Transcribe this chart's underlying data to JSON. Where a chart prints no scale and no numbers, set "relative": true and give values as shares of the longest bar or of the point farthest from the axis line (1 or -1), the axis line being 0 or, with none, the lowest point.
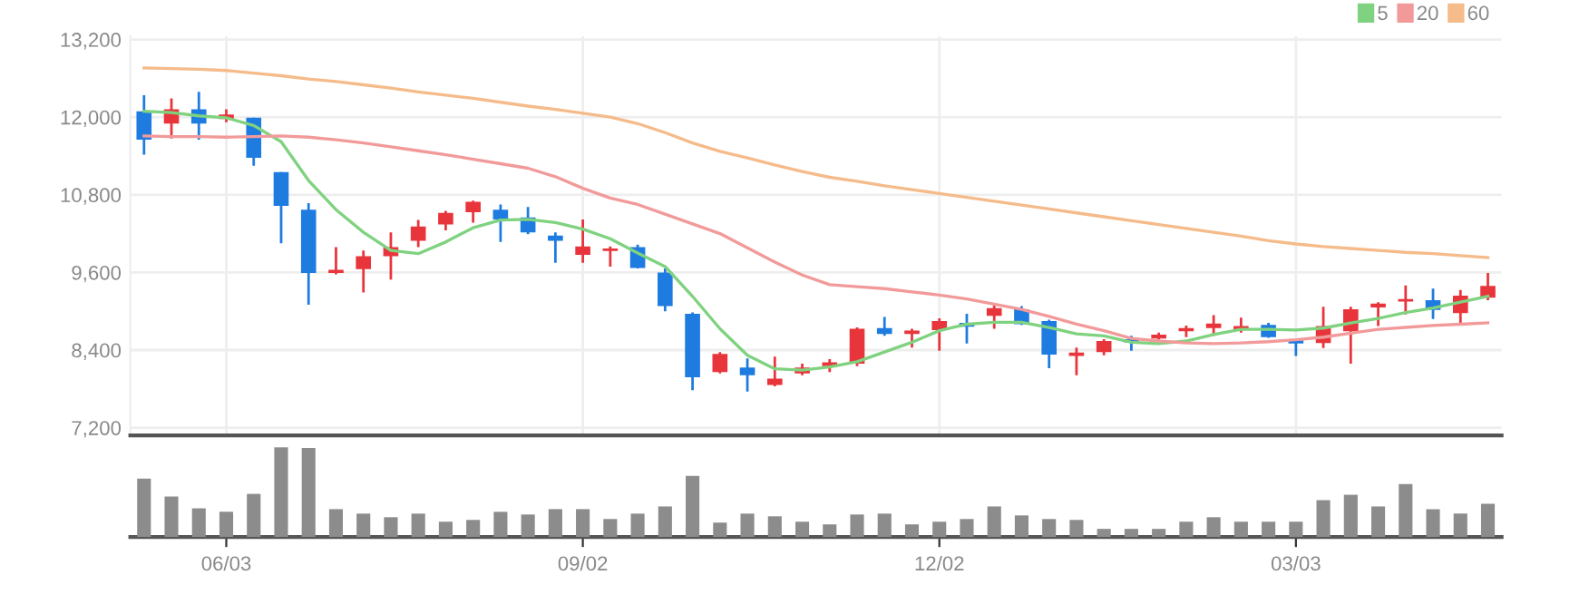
{
  "chart_data": [
    {
      "type": "candlestick",
      "categories": [
        null,
        null,
        null,
        null,
        null,
        null,
        null,
        null,
        null,
        null,
        null,
        null,
        null,
        null,
        null,
        null,
        null,
        null,
        null,
        null,
        null,
        null,
        null,
        null,
        null,
        null,
        null,
        null,
        null,
        null,
        null,
        null,
        null,
        null,
        null,
        null,
        null,
        null,
        null,
        null,
        null,
        null,
        null,
        null,
        null,
        null,
        null,
        null,
        null,
        null
      ],
      "ohlc": [
        [
          12090,
          12340,
          11420,
          11650
        ],
        [
          11900,
          12290,
          11670,
          12120
        ],
        [
          12120,
          12390,
          11650,
          11900
        ],
        [
          11970,
          12120,
          11920,
          12040
        ],
        [
          11990,
          11990,
          11250,
          11370
        ],
        [
          11150,
          11150,
          10050,
          10630
        ],
        [
          10570,
          10670,
          9100,
          9590
        ],
        [
          9590,
          9990,
          9570,
          9640
        ],
        [
          9650,
          9940,
          9290,
          9850
        ],
        [
          9850,
          10220,
          9490,
          9990
        ],
        [
          10090,
          10410,
          9990,
          10310
        ],
        [
          10340,
          10550,
          10250,
          10520
        ],
        [
          10530,
          10710,
          10370,
          10690
        ],
        [
          10570,
          10650,
          10070,
          10420
        ],
        [
          10450,
          10610,
          10190,
          10220
        ],
        [
          10170,
          10220,
          9750,
          10090
        ],
        [
          9870,
          10420,
          9750,
          10000
        ],
        [
          9930,
          10000,
          9690,
          9970
        ],
        [
          9990,
          10030,
          9660,
          9670
        ],
        [
          9600,
          9660,
          9000,
          9080
        ],
        [
          8960,
          8980,
          7780,
          7980
        ],
        [
          8060,
          8370,
          8040,
          8340
        ],
        [
          8130,
          8270,
          7760,
          8010
        ],
        [
          7860,
          8300,
          7840,
          7960
        ],
        [
          8040,
          8190,
          8010,
          8130
        ],
        [
          8150,
          8260,
          8060,
          8210
        ],
        [
          8190,
          8750,
          8150,
          8730
        ],
        [
          8740,
          8910,
          8620,
          8650
        ],
        [
          8650,
          8730,
          8440,
          8700
        ],
        [
          8710,
          8890,
          8390,
          8850
        ],
        [
          8820,
          8960,
          8500,
          8760
        ],
        [
          8930,
          9110,
          8730,
          9050
        ],
        [
          9030,
          9080,
          8790,
          8800
        ],
        [
          8850,
          8870,
          8120,
          8330
        ],
        [
          8310,
          8440,
          8010,
          8360
        ],
        [
          8370,
          8570,
          8320,
          8540
        ],
        [
          8570,
          8620,
          8390,
          8520
        ],
        [
          8580,
          8670,
          8560,
          8640
        ],
        [
          8690,
          8780,
          8600,
          8740
        ],
        [
          8740,
          8940,
          8620,
          8810
        ],
        [
          8720,
          8900,
          8670,
          8770
        ],
        [
          8790,
          8820,
          8590,
          8600
        ],
        [
          8550,
          8550,
          8310,
          8500
        ],
        [
          8510,
          9070,
          8430,
          8770
        ],
        [
          8690,
          9070,
          8190,
          9030
        ],
        [
          9060,
          9140,
          8770,
          9120
        ],
        [
          9150,
          9400,
          8950,
          9190
        ],
        [
          9170,
          9350,
          8880,
          9020
        ],
        [
          8970,
          9330,
          8820,
          9240
        ],
        [
          9210,
          9590,
          9170,
          9390
        ]
      ],
      "colors": [
        "#1e7be0",
        "#e8353b",
        "#1e7be0",
        "#e8353b",
        "#1e7be0",
        "#1e7be0",
        "#1e7be0",
        "#e8353b",
        "#e8353b",
        "#e8353b",
        "#e8353b",
        "#e8353b",
        "#e8353b",
        "#1e7be0",
        "#1e7be0",
        "#1e7be0",
        "#e8353b",
        "#e8353b",
        "#1e7be0",
        "#1e7be0",
        "#1e7be0",
        "#e8353b",
        "#1e7be0",
        "#e8353b",
        "#e8353b",
        "#e8353b",
        "#e8353b",
        "#1e7be0",
        "#e8353b",
        "#e8353b",
        "#1e7be0",
        "#e8353b",
        "#1e7be0",
        "#1e7be0",
        "#e8353b",
        "#e8353b",
        "#1e7be0",
        "#e8353b",
        "#e8353b",
        "#e8353b",
        "#e8353b",
        "#1e7be0",
        "#1e7be0",
        "#e8353b",
        "#e8353b",
        "#e8353b",
        "#e8353b",
        "#1e7be0",
        "#e8353b",
        "#e8353b"
      ],
      "series": [
        {
          "name": "5",
          "type": "line",
          "color": "#7fd27f",
          "values": [
            12090,
            12070,
            12020,
            11990,
            11870,
            11620,
            11020,
            10570,
            10220,
            9940,
            9890,
            10070,
            10290,
            10410,
            10420,
            10370,
            10270,
            10120,
            9900,
            9690,
            9230,
            8730,
            8320,
            8110,
            8090,
            8140,
            8220,
            8370,
            8520,
            8700,
            8800,
            8830,
            8830,
            8750,
            8650,
            8620,
            8520,
            8500,
            8540,
            8640,
            8720,
            8720,
            8710,
            8740,
            8820,
            8890,
            8980,
            9050,
            9140,
            9230
          ]
        },
        {
          "name": "20",
          "type": "line",
          "color": "#f29a9a",
          "values": [
            11710,
            11700,
            11700,
            11690,
            11700,
            11710,
            11690,
            11650,
            11600,
            11540,
            11480,
            11420,
            11350,
            11280,
            11210,
            11080,
            10900,
            10750,
            10650,
            10500,
            10350,
            10200,
            9980,
            9760,
            9560,
            9410,
            9380,
            9350,
            9300,
            9250,
            9190,
            9110,
            9030,
            8920,
            8800,
            8700,
            8580,
            8540,
            8510,
            8500,
            8510,
            8530,
            8560,
            8600,
            8660,
            8720,
            8750,
            8780,
            8800,
            8820
          ]
        },
        {
          "name": "60",
          "type": "line",
          "color": "#f5bb8a",
          "values": [
            12760,
            12750,
            12740,
            12720,
            12680,
            12640,
            12590,
            12550,
            12500,
            12450,
            12390,
            12340,
            12290,
            12230,
            12170,
            12120,
            12060,
            12000,
            11900,
            11760,
            11600,
            11470,
            11370,
            11260,
            11160,
            11070,
            11010,
            10940,
            10880,
            10820,
            10760,
            10700,
            10640,
            10580,
            10520,
            10460,
            10400,
            10340,
            10280,
            10220,
            10160,
            10090,
            10040,
            10000,
            9970,
            9940,
            9910,
            9890,
            9860,
            9830
          ]
        }
      ],
      "ylim": [
        7080,
        13250
      ],
      "yticks": [
        {
          "value": 7200,
          "label": "7,200"
        },
        {
          "value": 8400,
          "label": "8,400"
        },
        {
          "value": 9600,
          "label": "9,600"
        },
        {
          "value": 10800,
          "label": "10,800"
        },
        {
          "value": 12000,
          "label": "12,000"
        },
        {
          "value": 13200,
          "label": "13,200"
        }
      ],
      "grid": true,
      "legend": "top right",
      "tick_labels": "y"
    },
    {
      "type": "bar",
      "categories": [
        null,
        null,
        null,
        "06/03",
        null,
        null,
        null,
        null,
        null,
        null,
        null,
        null,
        null,
        null,
        null,
        null,
        "09/02",
        null,
        null,
        null,
        null,
        null,
        null,
        null,
        null,
        null,
        null,
        null,
        null,
        "12/02",
        null,
        null,
        null,
        null,
        null,
        null,
        null,
        null,
        null,
        null,
        null,
        null,
        "03/03",
        null,
        null,
        null,
        null,
        null,
        null,
        null
      ],
      "values": [
        0.65,
        0.45,
        0.32,
        0.28,
        0.48,
        1,
        0.99,
        0.31,
        0.26,
        0.22,
        0.26,
        0.17,
        0.19,
        0.28,
        0.25,
        0.31,
        0.31,
        0.2,
        0.26,
        0.34,
        0.68,
        0.16,
        0.26,
        0.23,
        0.17,
        0.14,
        0.25,
        0.26,
        0.14,
        0.17,
        0.2,
        0.34,
        0.24,
        0.2,
        0.19,
        0.09,
        0.09,
        0.09,
        0.17,
        0.22,
        0.17,
        0.17,
        0.17,
        0.41,
        0.47,
        0.34,
        0.59,
        0.31,
        0.26,
        0.37
      ],
      "color": "#8c8c8c",
      "relative": true,
      "tick_labels": "x"
    }
  ]
}
